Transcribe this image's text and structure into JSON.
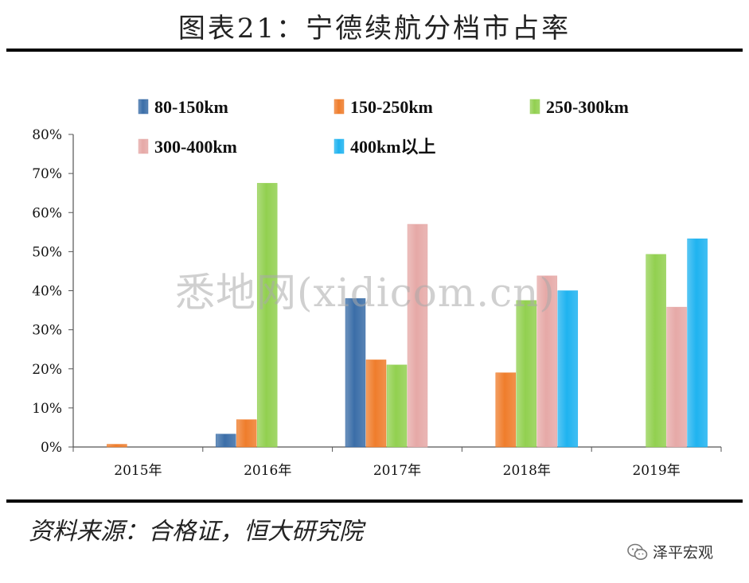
{
  "header": {
    "title": "图表21：宁德续航分档市占率"
  },
  "footer": {
    "source": "资料来源：合格证，恒大研究院",
    "brand": "泽平宏观"
  },
  "watermark": "悉地网(xidicom.cn)",
  "colors": {
    "80-150km": "#3b6ea8",
    "150-250km": "#ef7d2c",
    "250-300km": "#92d050",
    "300-400km": "#e6a9a7",
    "400km以上": "#1fb3f0"
  },
  "chart_data": {
    "type": "bar",
    "title": "图表21：宁德续航分档市占率",
    "categories": [
      "2015年",
      "2016年",
      "2017年",
      "2018年",
      "2019年"
    ],
    "ylim": [
      0,
      80
    ],
    "yticks": [
      "0%",
      "10%",
      "20%",
      "30%",
      "40%",
      "50%",
      "60%",
      "70%",
      "80%"
    ],
    "legend_position": "top",
    "grid": false,
    "series": [
      {
        "name": "80-150km",
        "values": [
          null,
          3.3,
          38.0,
          null,
          null
        ]
      },
      {
        "name": "150-250km",
        "values": [
          0.7,
          7.0,
          22.3,
          19.0,
          null
        ]
      },
      {
        "name": "250-300km",
        "values": [
          null,
          67.5,
          21.0,
          37.5,
          49.3
        ]
      },
      {
        "name": "300-400km",
        "values": [
          null,
          null,
          57.0,
          43.8,
          35.8
        ]
      },
      {
        "name": "400km以上",
        "values": [
          null,
          null,
          null,
          40.0,
          53.3
        ]
      }
    ]
  }
}
